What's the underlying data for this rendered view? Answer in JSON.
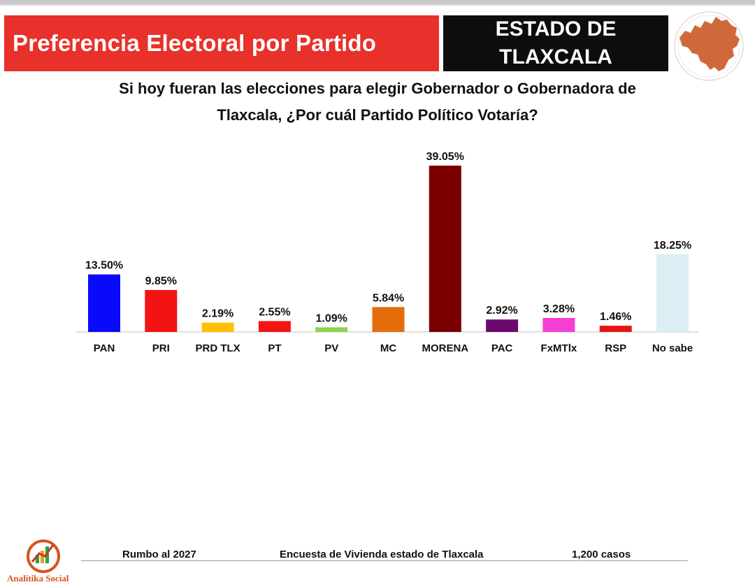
{
  "header": {
    "title": "Preferencia Electoral por Partido",
    "state_line1": "ESTADO DE",
    "state_line2": "TLAXCALA"
  },
  "question": {
    "line1": "Si hoy fueran las elecciones para elegir Gobernador o Gobernadora de",
    "line2": "Tlaxcala, ¿Por cuál Partido Político Votaría?"
  },
  "chart_data": {
    "type": "bar",
    "title": "Si hoy fueran las elecciones para elegir Gobernador o Gobernadora de Tlaxcala, ¿Por cuál Partido Político Votaría?",
    "xlabel": "",
    "ylabel": "",
    "ylim": [
      0,
      40
    ],
    "grid": false,
    "categories": [
      "PAN",
      "PRI",
      "PRD TLX",
      "PT",
      "PV",
      "MC",
      "MORENA",
      "PAC",
      "FxMTlx",
      "RSP",
      "No sabe"
    ],
    "values": [
      13.5,
      9.85,
      2.19,
      2.55,
      1.09,
      5.84,
      39.05,
      2.92,
      3.28,
      1.46,
      18.25
    ],
    "labels": [
      "13.50%",
      "9.85%",
      "2.19%",
      "2.55%",
      "1.09%",
      "5.84%",
      "39.05%",
      "2.92%",
      "3.28%",
      "1.46%",
      "18.25%"
    ],
    "colors": [
      "#0a0afa",
      "#f41313",
      "#ffc000",
      "#f41414",
      "#92d050",
      "#e46c0a",
      "#7a0000",
      "#6a0a6e",
      "#f53ed3",
      "#e81414",
      "#daeef3"
    ]
  },
  "footer": {
    "left": "Rumbo al 2027",
    "center": "Encuesta de Vivienda estado de Tlaxcala",
    "right": "1,200 casos",
    "logo_text": "Analitika Social"
  },
  "colors": {
    "title_bg": "#e8312a",
    "state_bg": "#0d0d0d",
    "map_fill": "#d0693a"
  }
}
